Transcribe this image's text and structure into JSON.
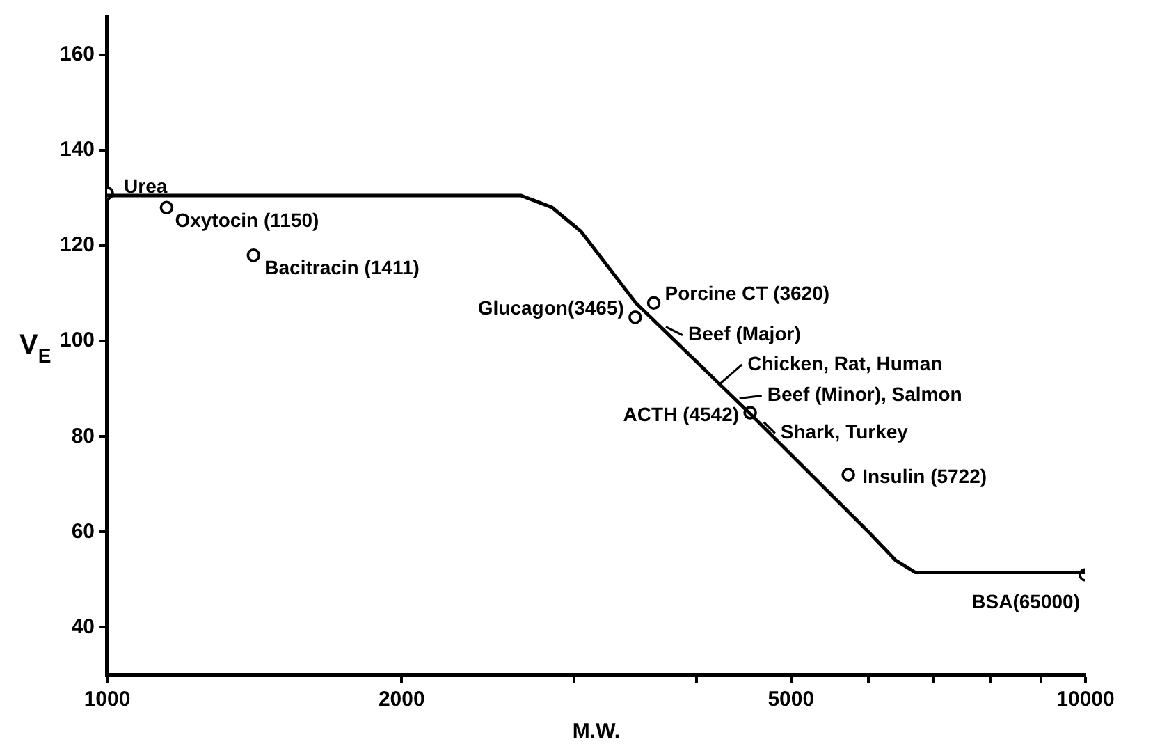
{
  "chart_data": {
    "type": "scatter",
    "xlabel": "M.W.",
    "ylabel": "V$_{E}$",
    "log": "x",
    "xlim": [
      1000,
      10000
    ],
    "xticks": [
      1000,
      2000,
      {
        "value": 3000,
        "label": null
      },
      {
        "value": 4000,
        "label": null
      },
      5000,
      {
        "value": 6000,
        "label": null
      },
      {
        "value": 7000,
        "label": null
      },
      {
        "value": 8000,
        "label": null
      },
      {
        "value": 9000,
        "label": null
      },
      10000
    ],
    "ylim": [
      30,
      168
    ],
    "yticks": [
      40,
      60,
      80,
      100,
      120,
      140,
      160
    ],
    "grid": false,
    "legend": false,
    "series": [
      {
        "type": "line",
        "color": "#000000",
        "marker": "none",
        "line_style": "solid",
        "x": [
          1000,
          2650,
          2850,
          3050,
          3470,
          4530,
          6000,
          6400,
          6700,
          10000
        ],
        "values": [
          130.5,
          130.5,
          128,
          123,
          108,
          85,
          60,
          54,
          51.5,
          51.5
        ]
      },
      {
        "type": "scatter",
        "color": "#000000",
        "marker": "circle",
        "x": [
          1000,
          1150,
          1411,
          3620,
          3465,
          4542,
          5722,
          10000
        ],
        "values": [
          131,
          128,
          118,
          108,
          105,
          85,
          72,
          51
        ]
      }
    ],
    "annotations": [
      {
        "text": "Urea",
        "x": 1000,
        "y": 131
      },
      {
        "text": "Oxytocin (1150)",
        "x": 1150,
        "y": 128
      },
      {
        "text": "Bacitracin (1411)",
        "x": 1411,
        "y": 118
      },
      {
        "text": "Porcine CT (3620)",
        "x": 3620,
        "y": 108
      },
      {
        "text": "Glucagon(3465)",
        "x": 3465,
        "y": 105
      },
      {
        "text": "Beef (Major)",
        "x": 3700,
        "y": 103
      },
      {
        "text": "Chicken, Rat, Human",
        "x": 4200,
        "y": 91
      },
      {
        "text": "Beef (Minor), Salmon",
        "x": 4400,
        "y": 88
      },
      {
        "text": "ACTH (4542)",
        "x": 4542,
        "y": 85
      },
      {
        "text": "Shark, Turkey",
        "x": 4660,
        "y": 83
      },
      {
        "text": "Insulin (5722)",
        "x": 5722,
        "y": 72
      },
      {
        "text": "BSA(65000)",
        "x": 10000,
        "y": 51
      }
    ]
  }
}
